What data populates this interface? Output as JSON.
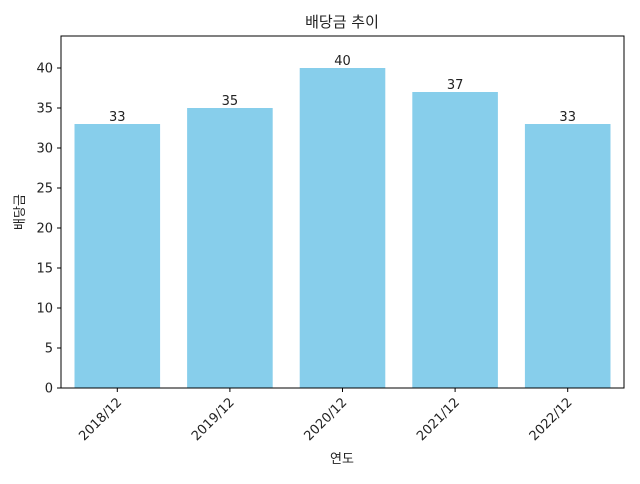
{
  "chart_data": {
    "type": "bar",
    "title": "배당금 추이",
    "xlabel": "연도",
    "ylabel": "배당금",
    "categories": [
      "2018/12",
      "2019/12",
      "2020/12",
      "2021/12",
      "2022/12"
    ],
    "values": [
      33,
      35,
      40,
      37,
      33
    ],
    "data_labels": [
      "33",
      "35",
      "40",
      "37",
      "33"
    ],
    "ylim": [
      0,
      44
    ],
    "yticks": [
      0,
      5,
      10,
      15,
      20,
      25,
      30,
      35,
      40
    ],
    "grid": false,
    "legend": "none",
    "bar_color": "#87CEEB",
    "x_tick_rotation_deg": 45
  }
}
